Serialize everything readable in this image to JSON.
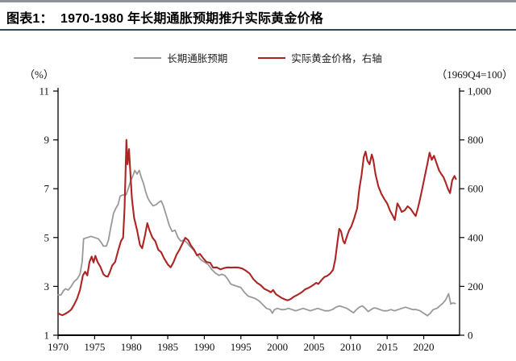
{
  "header": {
    "title": "图表1：  1970-1980 年长期通胀预期推升实际黄金价格"
  },
  "legend": [
    {
      "label": "长期通胀预期",
      "color": "#999999"
    },
    {
      "label": "实际黄金价格，右轴",
      "color": "#ad2424"
    }
  ],
  "chart_data": {
    "type": "line",
    "title": "1970-1980 年长期通胀预期推升实际黄金价格",
    "left_axis": {
      "label": "（%）",
      "range": [
        1,
        11
      ],
      "tick_values": [
        1,
        3,
        5,
        7,
        9,
        11
      ],
      "tick_labels": [
        "1",
        "3",
        "5",
        "7",
        "9",
        "11"
      ]
    },
    "right_axis": {
      "label": "（1969Q4=100）",
      "range": [
        0,
        1000
      ],
      "tick_values": [
        0,
        200,
        400,
        600,
        800,
        1000
      ],
      "tick_labels": [
        "0",
        "200",
        "400",
        "600",
        "800",
        "1,000"
      ]
    },
    "x_axis": {
      "range": [
        1970,
        2024.9
      ],
      "tick_values": [
        1970,
        1975,
        1980,
        1985,
        1990,
        1995,
        2000,
        2005,
        2010,
        2015,
        2020
      ],
      "tick_labels": [
        "1970",
        "1975",
        "1980",
        "1985",
        "1990",
        "1995",
        "2000",
        "2005",
        "2010",
        "2015",
        "2020"
      ]
    },
    "series": [
      {
        "key": "inflation-expectations-line",
        "name": "长期通胀预期",
        "axis": "left",
        "color": "#999999",
        "stroke_width": 1.8,
        "points": [
          [
            1970.0,
            2.65
          ],
          [
            1970.4,
            2.65
          ],
          [
            1970.7,
            2.8
          ],
          [
            1971.0,
            2.9
          ],
          [
            1971.4,
            2.85
          ],
          [
            1971.8,
            3.0
          ],
          [
            1972.2,
            3.2
          ],
          [
            1972.6,
            3.3
          ],
          [
            1973.0,
            3.5
          ],
          [
            1973.3,
            4.0
          ],
          [
            1973.5,
            4.95
          ],
          [
            1974.0,
            5.0
          ],
          [
            1974.5,
            5.05
          ],
          [
            1975.0,
            5.0
          ],
          [
            1975.5,
            4.95
          ],
          [
            1975.9,
            4.8
          ],
          [
            1976.2,
            4.65
          ],
          [
            1976.6,
            4.65
          ],
          [
            1976.9,
            4.9
          ],
          [
            1977.2,
            5.4
          ],
          [
            1977.6,
            6.0
          ],
          [
            1977.9,
            6.2
          ],
          [
            1978.2,
            6.35
          ],
          [
            1978.5,
            6.7
          ],
          [
            1978.9,
            6.75
          ],
          [
            1979.3,
            6.75
          ],
          [
            1979.6,
            7.0
          ],
          [
            1979.9,
            7.3
          ],
          [
            1980.2,
            7.5
          ],
          [
            1980.5,
            7.75
          ],
          [
            1980.8,
            7.6
          ],
          [
            1981.1,
            7.75
          ],
          [
            1981.4,
            7.45
          ],
          [
            1981.7,
            7.2
          ],
          [
            1982.0,
            6.85
          ],
          [
            1982.3,
            6.6
          ],
          [
            1982.6,
            6.45
          ],
          [
            1983.0,
            6.3
          ],
          [
            1983.4,
            6.35
          ],
          [
            1983.8,
            6.45
          ],
          [
            1984.1,
            6.5
          ],
          [
            1984.4,
            6.3
          ],
          [
            1984.8,
            5.9
          ],
          [
            1985.2,
            5.5
          ],
          [
            1985.6,
            5.25
          ],
          [
            1986.0,
            5.3
          ],
          [
            1986.4,
            5.0
          ],
          [
            1986.8,
            4.85
          ],
          [
            1987.2,
            4.9
          ],
          [
            1987.6,
            4.8
          ],
          [
            1988.0,
            4.65
          ],
          [
            1988.5,
            4.5
          ],
          [
            1989.0,
            4.3
          ],
          [
            1989.5,
            4.1
          ],
          [
            1990.0,
            4.0
          ],
          [
            1990.5,
            3.9
          ],
          [
            1991.0,
            3.7
          ],
          [
            1991.5,
            3.55
          ],
          [
            1992.0,
            3.45
          ],
          [
            1992.4,
            3.5
          ],
          [
            1992.8,
            3.45
          ],
          [
            1993.2,
            3.3
          ],
          [
            1993.6,
            3.1
          ],
          [
            1994.0,
            3.05
          ],
          [
            1994.5,
            3.0
          ],
          [
            1995.0,
            2.95
          ],
          [
            1995.5,
            2.75
          ],
          [
            1996.0,
            2.6
          ],
          [
            1996.5,
            2.55
          ],
          [
            1997.0,
            2.5
          ],
          [
            1997.5,
            2.4
          ],
          [
            1998.0,
            2.25
          ],
          [
            1998.5,
            2.1
          ],
          [
            1999.0,
            2.05
          ],
          [
            1999.3,
            1.9
          ],
          [
            1999.6,
            2.05
          ],
          [
            2000.0,
            2.1
          ],
          [
            2000.5,
            2.05
          ],
          [
            2001.0,
            2.05
          ],
          [
            2001.5,
            2.1
          ],
          [
            2002.0,
            2.05
          ],
          [
            2002.5,
            2.0
          ],
          [
            2003.0,
            2.05
          ],
          [
            2003.5,
            2.1
          ],
          [
            2004.0,
            2.05
          ],
          [
            2004.5,
            2.0
          ],
          [
            2005.0,
            2.05
          ],
          [
            2005.5,
            2.1
          ],
          [
            2006.0,
            2.05
          ],
          [
            2006.5,
            2.0
          ],
          [
            2007.0,
            2.0
          ],
          [
            2007.5,
            2.05
          ],
          [
            2008.0,
            2.15
          ],
          [
            2008.5,
            2.2
          ],
          [
            2009.0,
            2.15
          ],
          [
            2009.5,
            2.1
          ],
          [
            2010.0,
            2.0
          ],
          [
            2010.4,
            1.92
          ],
          [
            2010.8,
            2.05
          ],
          [
            2011.2,
            2.15
          ],
          [
            2011.6,
            2.2
          ],
          [
            2012.0,
            2.1
          ],
          [
            2012.4,
            1.97
          ],
          [
            2012.8,
            2.05
          ],
          [
            2013.2,
            2.12
          ],
          [
            2013.6,
            2.1
          ],
          [
            2014.0,
            2.05
          ],
          [
            2014.5,
            2.0
          ],
          [
            2015.0,
            2.0
          ],
          [
            2015.5,
            2.05
          ],
          [
            2016.0,
            2.0
          ],
          [
            2016.5,
            2.05
          ],
          [
            2017.0,
            2.1
          ],
          [
            2017.5,
            2.15
          ],
          [
            2018.0,
            2.1
          ],
          [
            2018.5,
            2.05
          ],
          [
            2019.0,
            2.05
          ],
          [
            2019.5,
            2.0
          ],
          [
            2020.0,
            1.9
          ],
          [
            2020.5,
            1.8
          ],
          [
            2020.9,
            1.9
          ],
          [
            2021.3,
            2.05
          ],
          [
            2021.8,
            2.1
          ],
          [
            2022.2,
            2.2
          ],
          [
            2022.6,
            2.3
          ],
          [
            2023.0,
            2.45
          ],
          [
            2023.4,
            2.7
          ],
          [
            2023.7,
            2.28
          ],
          [
            2024.0,
            2.32
          ],
          [
            2024.3,
            2.3
          ]
        ]
      },
      {
        "key": "real-gold-price-line",
        "name": "实际黄金价格，右轴",
        "axis": "right",
        "color": "#ad2424",
        "stroke_width": 2.1,
        "points": [
          [
            1970.0,
            90
          ],
          [
            1970.3,
            85
          ],
          [
            1970.6,
            82
          ],
          [
            1971.0,
            88
          ],
          [
            1971.4,
            95
          ],
          [
            1971.8,
            105
          ],
          [
            1972.2,
            125
          ],
          [
            1972.6,
            150
          ],
          [
            1973.0,
            185
          ],
          [
            1973.4,
            245
          ],
          [
            1973.7,
            260
          ],
          [
            1974.0,
            245
          ],
          [
            1974.3,
            300
          ],
          [
            1974.6,
            322
          ],
          [
            1974.85,
            298
          ],
          [
            1975.1,
            325
          ],
          [
            1975.4,
            300
          ],
          [
            1975.8,
            280
          ],
          [
            1976.2,
            250
          ],
          [
            1976.5,
            242
          ],
          [
            1976.8,
            240
          ],
          [
            1977.1,
            260
          ],
          [
            1977.4,
            285
          ],
          [
            1977.8,
            300
          ],
          [
            1978.2,
            345
          ],
          [
            1978.6,
            385
          ],
          [
            1978.9,
            400
          ],
          [
            1979.1,
            520
          ],
          [
            1979.25,
            690
          ],
          [
            1979.35,
            800
          ],
          [
            1979.5,
            700
          ],
          [
            1979.7,
            762
          ],
          [
            1979.9,
            660
          ],
          [
            1980.1,
            560
          ],
          [
            1980.4,
            482
          ],
          [
            1980.8,
            430
          ],
          [
            1981.2,
            370
          ],
          [
            1981.5,
            356
          ],
          [
            1981.9,
            410
          ],
          [
            1982.2,
            459
          ],
          [
            1982.5,
            430
          ],
          [
            1982.9,
            400
          ],
          [
            1983.3,
            385
          ],
          [
            1983.7,
            350
          ],
          [
            1984.1,
            340
          ],
          [
            1984.5,
            315
          ],
          [
            1985.0,
            290
          ],
          [
            1985.4,
            278
          ],
          [
            1985.8,
            300
          ],
          [
            1986.2,
            330
          ],
          [
            1986.6,
            350
          ],
          [
            1987.0,
            375
          ],
          [
            1987.4,
            399
          ],
          [
            1987.8,
            389
          ],
          [
            1988.2,
            366
          ],
          [
            1988.6,
            350
          ],
          [
            1989.0,
            327
          ],
          [
            1989.4,
            333
          ],
          [
            1989.8,
            317
          ],
          [
            1990.3,
            300
          ],
          [
            1990.8,
            297
          ],
          [
            1991.2,
            277
          ],
          [
            1991.7,
            278
          ],
          [
            1992.2,
            270
          ],
          [
            1992.7,
            275
          ],
          [
            1993.2,
            278
          ],
          [
            1993.7,
            277
          ],
          [
            1994.2,
            278
          ],
          [
            1994.7,
            277
          ],
          [
            1995.2,
            273
          ],
          [
            1995.7,
            264
          ],
          [
            1996.2,
            252
          ],
          [
            1996.7,
            230
          ],
          [
            1997.2,
            215
          ],
          [
            1997.7,
            205
          ],
          [
            1998.2,
            190
          ],
          [
            1998.7,
            183
          ],
          [
            1999.1,
            176
          ],
          [
            1999.4,
            185
          ],
          [
            1999.8,
            168
          ],
          [
            2000.2,
            160
          ],
          [
            2000.6,
            152
          ],
          [
            2001.0,
            147
          ],
          [
            2001.4,
            143
          ],
          [
            2001.8,
            148
          ],
          [
            2002.2,
            157
          ],
          [
            2002.6,
            163
          ],
          [
            2003.0,
            170
          ],
          [
            2003.4,
            178
          ],
          [
            2003.8,
            188
          ],
          [
            2004.2,
            193
          ],
          [
            2004.6,
            200
          ],
          [
            2005.0,
            208
          ],
          [
            2005.3,
            215
          ],
          [
            2005.6,
            210
          ],
          [
            2006.0,
            225
          ],
          [
            2006.4,
            238
          ],
          [
            2006.8,
            243
          ],
          [
            2007.2,
            252
          ],
          [
            2007.6,
            268
          ],
          [
            2007.9,
            310
          ],
          [
            2008.2,
            380
          ],
          [
            2008.45,
            436
          ],
          [
            2008.7,
            425
          ],
          [
            2009.0,
            385
          ],
          [
            2009.2,
            376
          ],
          [
            2009.5,
            405
          ],
          [
            2009.8,
            430
          ],
          [
            2010.1,
            445
          ],
          [
            2010.5,
            480
          ],
          [
            2010.9,
            520
          ],
          [
            2011.2,
            600
          ],
          [
            2011.5,
            655
          ],
          [
            2011.8,
            730
          ],
          [
            2012.05,
            752
          ],
          [
            2012.3,
            715
          ],
          [
            2012.6,
            700
          ],
          [
            2012.9,
            740
          ],
          [
            2013.1,
            718
          ],
          [
            2013.4,
            660
          ],
          [
            2013.8,
            610
          ],
          [
            2014.2,
            580
          ],
          [
            2014.6,
            558
          ],
          [
            2015.0,
            540
          ],
          [
            2015.4,
            510
          ],
          [
            2015.8,
            487
          ],
          [
            2016.05,
            472
          ],
          [
            2016.4,
            540
          ],
          [
            2016.7,
            524
          ],
          [
            2017.0,
            505
          ],
          [
            2017.4,
            512
          ],
          [
            2017.8,
            528
          ],
          [
            2018.2,
            518
          ],
          [
            2018.6,
            500
          ],
          [
            2018.9,
            488
          ],
          [
            2019.2,
            520
          ],
          [
            2019.5,
            558
          ],
          [
            2019.8,
            600
          ],
          [
            2020.1,
            645
          ],
          [
            2020.5,
            702
          ],
          [
            2020.8,
            748
          ],
          [
            2021.1,
            718
          ],
          [
            2021.4,
            735
          ],
          [
            2021.8,
            700
          ],
          [
            2022.1,
            675
          ],
          [
            2022.4,
            660
          ],
          [
            2022.7,
            648
          ],
          [
            2023.0,
            625
          ],
          [
            2023.3,
            600
          ],
          [
            2023.6,
            582
          ],
          [
            2023.9,
            635
          ],
          [
            2024.2,
            652
          ],
          [
            2024.4,
            640
          ]
        ]
      }
    ]
  }
}
